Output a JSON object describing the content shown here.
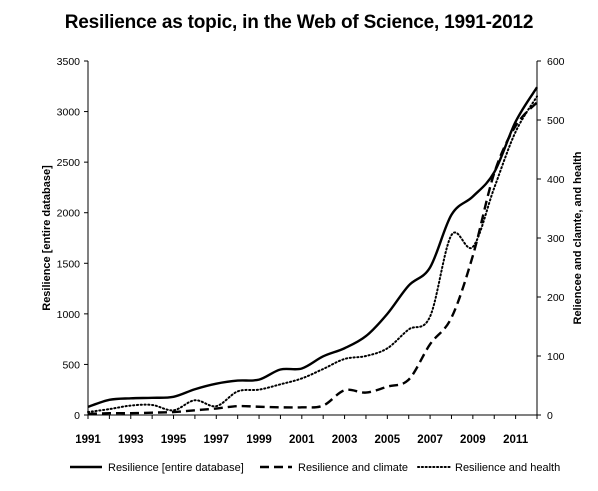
{
  "chart_data": {
    "type": "line",
    "title": "Resilience as topic, in the Web of Science, 1991-2012",
    "xlabel": "",
    "ylabel": "Resilience [entire database]",
    "y2label": "Reliencee and clamte, and health",
    "x": [
      1991,
      1992,
      1993,
      1994,
      1995,
      1996,
      1997,
      1998,
      1999,
      2000,
      2001,
      2002,
      2003,
      2004,
      2005,
      2006,
      2007,
      2008,
      2009,
      2010,
      2011,
      2012
    ],
    "x_ticks": [
      "1991",
      "1993",
      "1995",
      "1997",
      "1999",
      "2001",
      "2003",
      "2005",
      "2007",
      "2009",
      "2011"
    ],
    "ylim": [
      0,
      3500
    ],
    "y_ticks": [
      "0",
      "500",
      "1000",
      "1500",
      "2000",
      "2500",
      "3000",
      "3500"
    ],
    "y2lim": [
      0,
      600
    ],
    "y2_ticks": [
      "0",
      "100",
      "200",
      "300",
      "400",
      "500",
      "600"
    ],
    "grid": false,
    "legend_position": "bottom",
    "series": [
      {
        "name": "Resilience [entire database]",
        "axis": "left",
        "style": "solid",
        "color": "#000000",
        "values": [
          80,
          150,
          165,
          170,
          180,
          255,
          310,
          340,
          350,
          450,
          460,
          580,
          660,
          780,
          1000,
          1280,
          1460,
          1980,
          2160,
          2400,
          2900,
          3240
        ]
      },
      {
        "name": "Resilience and climate",
        "axis": "right",
        "style": "dashed",
        "color": "#000000",
        "values": [
          2,
          3,
          3,
          4,
          5,
          8,
          11,
          15,
          14,
          13,
          13,
          16,
          42,
          38,
          48,
          60,
          120,
          165,
          270,
          410,
          490,
          530
        ]
      },
      {
        "name": "Resilience and health",
        "axis": "right",
        "style": "dotted",
        "color": "#000000",
        "values": [
          5,
          10,
          16,
          17,
          8,
          25,
          15,
          40,
          43,
          52,
          62,
          78,
          95,
          100,
          113,
          145,
          167,
          305,
          285,
          385,
          480,
          540
        ]
      }
    ]
  }
}
